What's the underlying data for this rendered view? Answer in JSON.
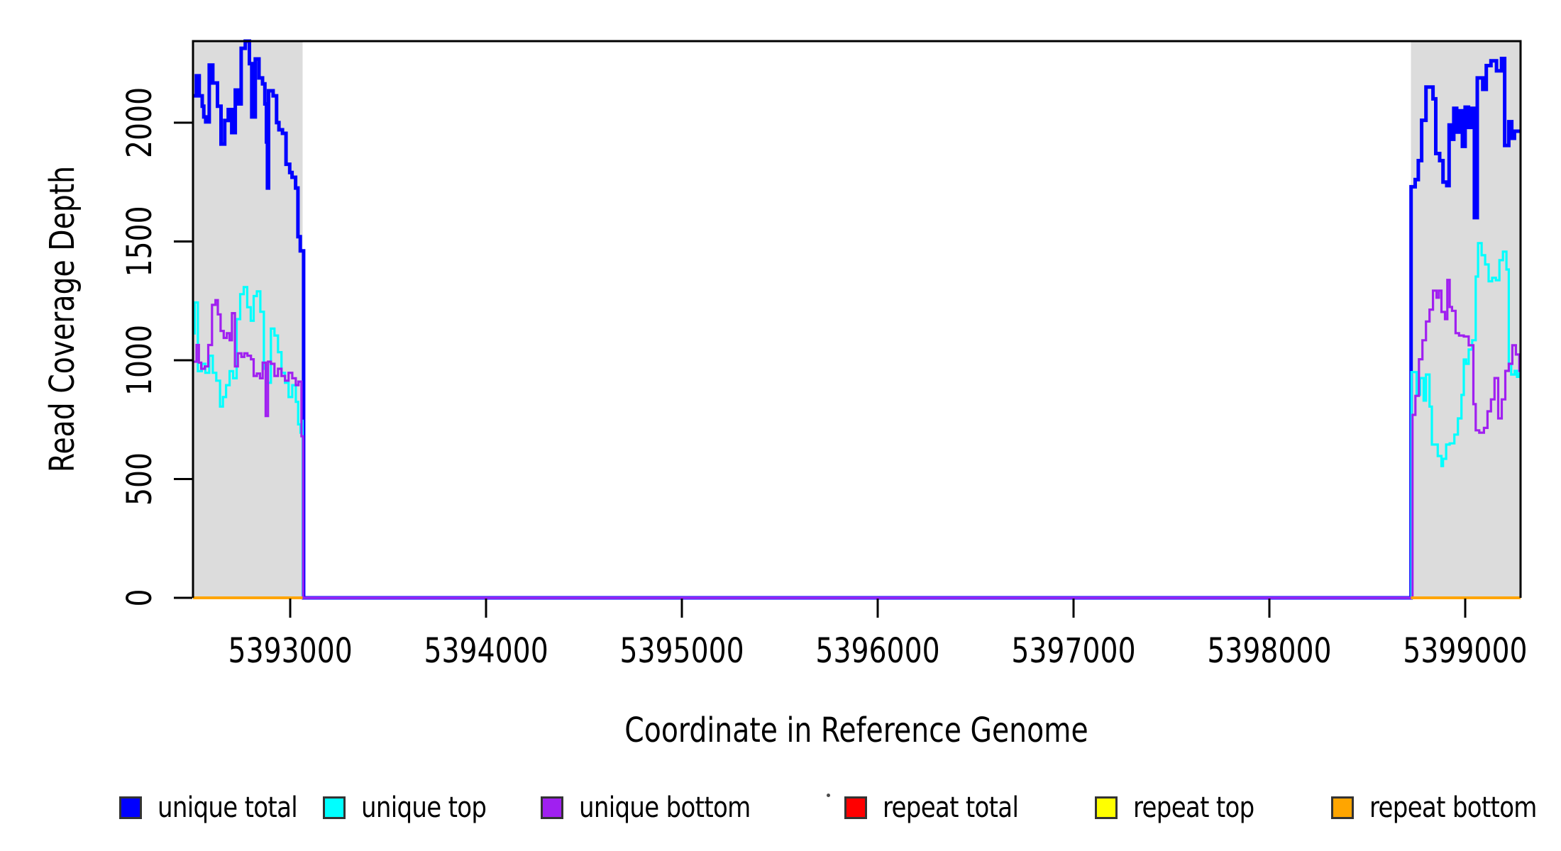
{
  "chart_data": {
    "type": "line",
    "title": "",
    "xlabel": "Coordinate in Reference Genome",
    "ylabel": "Read Coverage Depth",
    "xlim": [
      5392503,
      5399283
    ],
    "ylim": [
      0,
      2343
    ],
    "x_ticks": [
      5393000,
      5394000,
      5395000,
      5396000,
      5397000,
      5398000,
      5399000
    ],
    "y_ticks": [
      0,
      500,
      1000,
      1500,
      2000
    ],
    "grid": false,
    "legend_position": "bottom",
    "shade_color": "#DCDCDC",
    "shaded_regions": [
      {
        "start": 5392503,
        "end": 5393062
      },
      {
        "start": 5398723,
        "end": 5399283
      }
    ],
    "legend": [
      {
        "label": "unique total",
        "color": "#0000FF"
      },
      {
        "label": "unique top",
        "color": "#00FFFF"
      },
      {
        "label": "unique bottom",
        "color": "#A020F0"
      },
      {
        "label": "repeat total",
        "color": "#FF0000"
      },
      {
        "label": "repeat top",
        "color": "#FFFF00"
      },
      {
        "label": "repeat bottom",
        "color": "#FFA500"
      }
    ],
    "series": [
      {
        "name": "unique total",
        "color": "#0000FF",
        "width": 5,
        "segments": [
          [
            [
              5392503,
              2113
            ],
            [
              5392520,
              2197
            ],
            [
              5392535,
              2113
            ],
            [
              5392550,
              2069
            ],
            [
              5392558,
              2024
            ],
            [
              5392568,
              2003
            ],
            [
              5392586,
              2242
            ],
            [
              5392604,
              2167
            ],
            [
              5392628,
              2069
            ],
            [
              5392646,
              1910
            ],
            [
              5392665,
              2009
            ],
            [
              5392683,
              2055
            ],
            [
              5392701,
              1958
            ],
            [
              5392719,
              2137
            ],
            [
              5392731,
              2079
            ],
            [
              5392749,
              2313
            ],
            [
              5392770,
              2343
            ],
            [
              5392791,
              2248
            ],
            [
              5392803,
              2024
            ],
            [
              5392821,
              2268
            ],
            [
              5392840,
              2188
            ],
            [
              5392858,
              2163
            ],
            [
              5392870,
              2079
            ],
            [
              5392878,
              1919
            ],
            [
              5392883,
              1725
            ],
            [
              5392889,
              2134
            ],
            [
              5392912,
              2113
            ],
            [
              5392930,
              2000
            ],
            [
              5392942,
              1970
            ],
            [
              5392960,
              1955
            ],
            [
              5392978,
              1825
            ],
            [
              5392997,
              1790
            ],
            [
              5393009,
              1770
            ],
            [
              5393027,
              1725
            ],
            [
              5393039,
              1520
            ],
            [
              5393051,
              1460
            ],
            [
              5393068,
              0
            ],
            [
              5398724,
              1730
            ],
            [
              5398745,
              1760
            ],
            [
              5398761,
              1840
            ],
            [
              5398778,
              2010
            ],
            [
              5398800,
              2150
            ],
            [
              5398836,
              2100
            ],
            [
              5398850,
              1870
            ],
            [
              5398870,
              1840
            ],
            [
              5398887,
              1750
            ],
            [
              5398906,
              1735
            ],
            [
              5398918,
              1990
            ],
            [
              5398930,
              1930
            ],
            [
              5398942,
              2060
            ],
            [
              5398957,
              1960
            ],
            [
              5398971,
              2050
            ],
            [
              5398986,
              1900
            ],
            [
              5399000,
              2065
            ],
            [
              5399017,
              1980
            ],
            [
              5399032,
              2060
            ],
            [
              5399047,
              1600
            ],
            [
              5399062,
              2188
            ],
            [
              5399090,
              2140
            ],
            [
              5399108,
              2240
            ],
            [
              5399132,
              2260
            ],
            [
              5399160,
              2218
            ],
            [
              5399186,
              2270
            ],
            [
              5399202,
              1904
            ],
            [
              5399223,
              2004
            ],
            [
              5399238,
              1934
            ],
            [
              5399252,
              1964
            ],
            [
              5399283,
              1964
            ]
          ]
        ]
      },
      {
        "name": "unique top",
        "color": "#00FFFF",
        "width": 3.2,
        "segments": [
          [
            [
              5392503,
              1113
            ],
            [
              5392512,
              1243
            ],
            [
              5392528,
              954
            ],
            [
              5392548,
              985
            ],
            [
              5392566,
              947
            ],
            [
              5392586,
              1019
            ],
            [
              5392604,
              947
            ],
            [
              5392622,
              914
            ],
            [
              5392641,
              805
            ],
            [
              5392656,
              845
            ],
            [
              5392672,
              895
            ],
            [
              5392690,
              954
            ],
            [
              5392708,
              924
            ],
            [
              5392726,
              1173
            ],
            [
              5392744,
              1278
            ],
            [
              5392762,
              1308
            ],
            [
              5392780,
              1223
            ],
            [
              5392798,
              1166
            ],
            [
              5392813,
              1270
            ],
            [
              5392829,
              1290
            ],
            [
              5392847,
              1204
            ],
            [
              5392865,
              964
            ],
            [
              5392883,
              905
            ],
            [
              5392901,
              1133
            ],
            [
              5392919,
              1104
            ],
            [
              5392937,
              1034
            ],
            [
              5392955,
              947
            ],
            [
              5392973,
              905
            ],
            [
              5392991,
              845
            ],
            [
              5393010,
              895
            ],
            [
              5393028,
              825
            ],
            [
              5393040,
              730
            ],
            [
              5393052,
              695
            ],
            [
              5393058,
              745
            ],
            [
              5393063,
              0
            ],
            [
              5398726,
              950
            ],
            [
              5398752,
              855
            ],
            [
              5398770,
              925
            ],
            [
              5398788,
              830
            ],
            [
              5398800,
              940
            ],
            [
              5398818,
              805
            ],
            [
              5398830,
              645
            ],
            [
              5398860,
              597
            ],
            [
              5398879,
              555
            ],
            [
              5398887,
              585
            ],
            [
              5398903,
              645
            ],
            [
              5398921,
              650
            ],
            [
              5398945,
              687
            ],
            [
              5398963,
              755
            ],
            [
              5398981,
              854
            ],
            [
              5398993,
              1003
            ],
            [
              5399005,
              985
            ],
            [
              5399018,
              1045
            ],
            [
              5399036,
              1084
            ],
            [
              5399054,
              1352
            ],
            [
              5399066,
              1493
            ],
            [
              5399084,
              1442
            ],
            [
              5399102,
              1403
            ],
            [
              5399120,
              1332
            ],
            [
              5399138,
              1347
            ],
            [
              5399157,
              1337
            ],
            [
              5399175,
              1421
            ],
            [
              5399193,
              1457
            ],
            [
              5399211,
              1382
            ],
            [
              5399223,
              985
            ],
            [
              5399235,
              940
            ],
            [
              5399253,
              955
            ],
            [
              5399265,
              930
            ],
            [
              5399277,
              944
            ],
            [
              5399283,
              944
            ]
          ]
        ]
      },
      {
        "name": "unique bottom",
        "color": "#A020F0",
        "width": 3.2,
        "segments": [
          [
            [
              5392503,
              994
            ],
            [
              5392521,
              1064
            ],
            [
              5392533,
              990
            ],
            [
              5392545,
              964
            ],
            [
              5392563,
              974
            ],
            [
              5392581,
              1064
            ],
            [
              5392600,
              1233
            ],
            [
              5392618,
              1253
            ],
            [
              5392630,
              1193
            ],
            [
              5392644,
              1123
            ],
            [
              5392660,
              1094
            ],
            [
              5392676,
              1114
            ],
            [
              5392690,
              1084
            ],
            [
              5392702,
              1198
            ],
            [
              5392717,
              974
            ],
            [
              5392732,
              1029
            ],
            [
              5392750,
              1014
            ],
            [
              5392765,
              1029
            ],
            [
              5392781,
              1019
            ],
            [
              5392799,
              1004
            ],
            [
              5392813,
              934
            ],
            [
              5392829,
              944
            ],
            [
              5392845,
              924
            ],
            [
              5392859,
              990
            ],
            [
              5392874,
              765
            ],
            [
              5392886,
              994
            ],
            [
              5392901,
              985
            ],
            [
              5392919,
              934
            ],
            [
              5392937,
              964
            ],
            [
              5392955,
              934
            ],
            [
              5392973,
              914
            ],
            [
              5392991,
              947
            ],
            [
              5393010,
              924
            ],
            [
              5393028,
              895
            ],
            [
              5393042,
              910
            ],
            [
              5393057,
              680
            ],
            [
              5393065,
              0
            ],
            [
              5398731,
              770
            ],
            [
              5398746,
              850
            ],
            [
              5398764,
              1004
            ],
            [
              5398782,
              1084
            ],
            [
              5398800,
              1163
            ],
            [
              5398818,
              1213
            ],
            [
              5398836,
              1293
            ],
            [
              5398854,
              1263
            ],
            [
              5398866,
              1293
            ],
            [
              5398879,
              1203
            ],
            [
              5398897,
              1173
            ],
            [
              5398909,
              1338
            ],
            [
              5398921,
              1224
            ],
            [
              5398933,
              1208
            ],
            [
              5398951,
              1114
            ],
            [
              5398969,
              1104
            ],
            [
              5398993,
              1100
            ],
            [
              5399018,
              1063
            ],
            [
              5399042,
              815
            ],
            [
              5399054,
              705
            ],
            [
              5399072,
              695
            ],
            [
              5399096,
              715
            ],
            [
              5399114,
              785
            ],
            [
              5399132,
              835
            ],
            [
              5399150,
              925
            ],
            [
              5399169,
              755
            ],
            [
              5399187,
              835
            ],
            [
              5399205,
              955
            ],
            [
              5399223,
              985
            ],
            [
              5399241,
              1063
            ],
            [
              5399259,
              1024
            ],
            [
              5399277,
              955
            ],
            [
              5399283,
              955
            ]
          ]
        ]
      },
      {
        "name": "repeat total",
        "color": "#FF0000",
        "width": 3,
        "segments": [
          [
            [
              5392503,
              0
            ],
            [
              5393062,
              0
            ]
          ],
          [
            [
              5398723,
              0
            ],
            [
              5399283,
              0
            ]
          ]
        ]
      },
      {
        "name": "repeat top",
        "color": "#FFFF00",
        "width": 3,
        "segments": [
          [
            [
              5392503,
              0
            ],
            [
              5393062,
              0
            ]
          ],
          [
            [
              5398723,
              0
            ],
            [
              5399283,
              0
            ]
          ]
        ]
      },
      {
        "name": "repeat bottom",
        "color": "#FFA500",
        "width": 4,
        "segments": [
          [
            [
              5392503,
              0
            ],
            [
              5393062,
              0
            ]
          ],
          [
            [
              5398723,
              0
            ],
            [
              5399283,
              0
            ]
          ]
        ]
      }
    ]
  },
  "decorations": {
    "stray_dot_color": "#4a4a4a"
  }
}
